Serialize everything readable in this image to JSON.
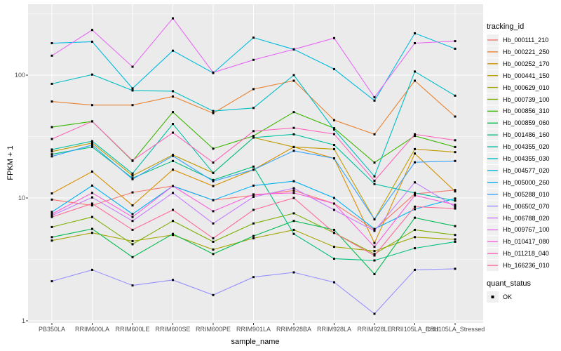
{
  "figure": {
    "y_axis": {
      "label": "FPKM + 1",
      "tick_labels": [
        "1",
        "10",
        "100"
      ],
      "tick_values": [
        1,
        10,
        100
      ],
      "minor_values": [
        3.1623,
        31.623,
        316.23
      ]
    },
    "x_axis": {
      "label": "sample_name"
    },
    "legend": {
      "tracking_title": "tracking_id",
      "quant_title": "quant_status",
      "quant_items": [
        {
          "label": "OK"
        }
      ]
    },
    "colors": {
      "panel_bg": "#EBEBEB",
      "grid": "#FFFFFF",
      "tick_mark": "#333333",
      "tick_text": "#4D4D4D",
      "point": "#000000",
      "legend_key_bg": "#F0F0F0"
    }
  },
  "chart_data": {
    "type": "line",
    "title": "",
    "xlabel": "sample_name",
    "ylabel": "FPKM + 1",
    "y_scale": "log10",
    "ylim": [
      1,
      378
    ],
    "grid": true,
    "legend_position": "right",
    "point_shape": "filled-square",
    "point_color": "#000000",
    "quant_status": "OK",
    "categories": [
      "PB350LA",
      "RRIM600LA",
      "RRIM600LE",
      "RRIM600SE",
      "RRIM600PE",
      "RRIM901LA",
      "RRIM928BA",
      "RRIM928LA",
      "RRIM928LE",
      "RRII105LA_Cold",
      "RRII105LA_Stressed"
    ],
    "series": [
      {
        "name": "Hb_000111_210",
        "color": "#F8766D",
        "values": [
          9.7,
          8.7,
          11.1,
          12.5,
          9.6,
          10.5,
          11.5,
          9.0,
          5.5,
          10.8,
          11.6
        ]
      },
      {
        "name": "Hb_000221_250",
        "color": "#EA8331",
        "values": [
          61,
          57,
          57,
          67,
          49,
          77,
          90,
          43,
          33,
          90,
          46
        ]
      },
      {
        "name": "Hb_000252_170",
        "color": "#D89000",
        "values": [
          10.9,
          16.4,
          8.7,
          17.0,
          12.5,
          17,
          26,
          21,
          4.3,
          23,
          11.3
        ]
      },
      {
        "name": "Hb_000441_150",
        "color": "#C09B00",
        "values": [
          23.9,
          28,
          15.2,
          22.4,
          16,
          31,
          26,
          25,
          6.7,
          25,
          23.6
        ]
      },
      {
        "name": "Hb_000629_010",
        "color": "#A3A500",
        "values": [
          4.5,
          5.2,
          4.45,
          5.0,
          3.8,
          4.7,
          5.5,
          4.0,
          3.7,
          4.8,
          4.6
        ]
      },
      {
        "name": "Hb_000739_100",
        "color": "#7CAE00",
        "values": [
          5.8,
          7.0,
          4.2,
          6.5,
          4.4,
          6.2,
          7.5,
          5.2,
          3.5,
          5.5,
          5.0
        ]
      },
      {
        "name": "Hb_000856_310",
        "color": "#39B600",
        "values": [
          37.7,
          42,
          20,
          50,
          25.2,
          32,
          50,
          37,
          19.4,
          32,
          26
        ]
      },
      {
        "name": "Hb_000859_060",
        "color": "#00BB4E",
        "values": [
          4.8,
          5.6,
          3.3,
          5.1,
          3.5,
          4.9,
          6.5,
          5.5,
          2.4,
          6.9,
          5.9
        ]
      },
      {
        "name": "Hb_001486_160",
        "color": "#00BF7D",
        "values": [
          22.7,
          26,
          14.5,
          20,
          14,
          18,
          5.1,
          3.2,
          3.1,
          3.9,
          4.4
        ]
      },
      {
        "name": "Hb_004355_020",
        "color": "#00C1A3",
        "values": [
          24.8,
          29,
          15.8,
          40,
          16,
          31,
          33,
          27,
          13,
          11,
          9.5
        ]
      },
      {
        "name": "Hb_004355_030",
        "color": "#00BFC4",
        "values": [
          85,
          101,
          75,
          74,
          51,
          54,
          100,
          36,
          15,
          107,
          68
        ]
      },
      {
        "name": "Hb_004577_020",
        "color": "#00BAE0",
        "values": [
          182,
          187,
          78,
          158,
          104,
          202,
          162,
          112,
          62,
          219,
          164
        ]
      },
      {
        "name": "Hb_005000_260",
        "color": "#00B0F6",
        "values": [
          7.7,
          12.6,
          7.4,
          12.5,
          9.6,
          12.6,
          13.7,
          10,
          5.6,
          8.1,
          9.9
        ]
      },
      {
        "name": "Hb_005288_010",
        "color": "#35A2FF",
        "values": [
          21.8,
          27,
          14.2,
          22,
          13.7,
          17,
          24.2,
          21,
          6.7,
          19.5,
          20
        ]
      },
      {
        "name": "Hb_006502_070",
        "color": "#9590FF",
        "values": [
          2.1,
          2.6,
          1.94,
          2.15,
          1.62,
          2.27,
          2.48,
          2.06,
          1.14,
          2.6,
          2.65
        ]
      },
      {
        "name": "Hb_006788_020",
        "color": "#C77CFF",
        "values": [
          7.2,
          10.1,
          6.5,
          11,
          6.2,
          10.2,
          12,
          8,
          5.4,
          13.4,
          8.5
        ]
      },
      {
        "name": "Hb_009767_100",
        "color": "#E76BF3",
        "values": [
          144,
          233,
          117,
          290,
          105,
          133,
          162,
          200,
          66,
          182,
          189
        ]
      },
      {
        "name": "Hb_010417_080",
        "color": "#FA62DB",
        "values": [
          7.4,
          11,
          7.0,
          12.5,
          7.8,
          10.7,
          11,
          9,
          4.0,
          10.5,
          8.8
        ]
      },
      {
        "name": "Hb_011218_040",
        "color": "#FF62BC",
        "values": [
          30.2,
          42,
          20.2,
          34,
          19.4,
          35,
          37.2,
          33.1,
          13.8,
          33,
          29.5
        ]
      },
      {
        "name": "Hb_166236_010",
        "color": "#FF6A98",
        "values": [
          7.0,
          9.0,
          5.5,
          8.0,
          4.7,
          8.0,
          10,
          5.2,
          3.4,
          8.5,
          8.2
        ]
      }
    ]
  }
}
